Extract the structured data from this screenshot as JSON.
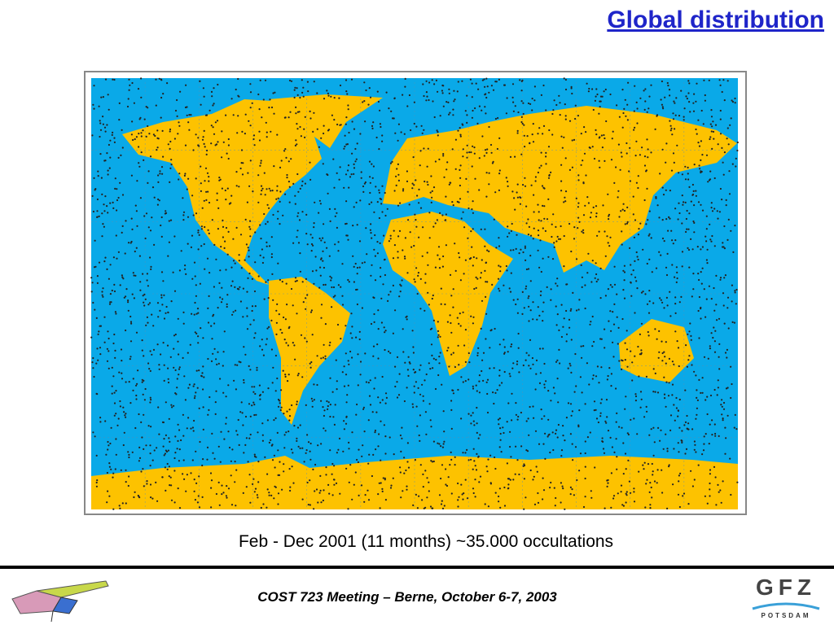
{
  "header": {
    "title": "Global distribution"
  },
  "figure": {
    "caption": "Feb - Dec 2001 (11 months) ~35.000 occultations"
  },
  "footer": {
    "meeting": "COST 723 Meeting – Berne, October 6-7, 2003",
    "logo": "GFZ",
    "logo_subtitle": "POTSDAM"
  }
}
